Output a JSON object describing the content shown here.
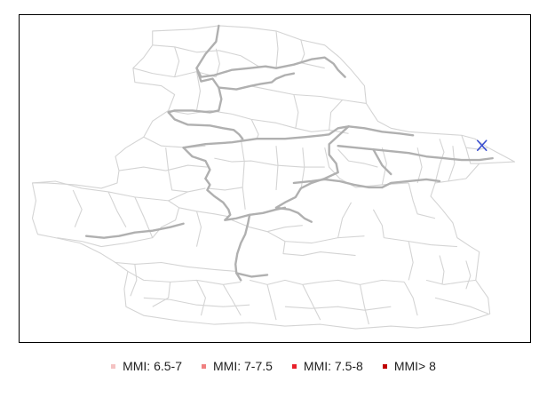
{
  "legend": {
    "items": [
      {
        "label": "MMI: 6.5-7",
        "color": "#f4c2c2"
      },
      {
        "label": "MMI: 7-7.5",
        "color": "#f08080"
      },
      {
        "label": "MMI: 7.5-8",
        "color": "#e8202a"
      },
      {
        "label": "MMI> 8",
        "color": "#c00000"
      }
    ]
  },
  "map": {
    "outline_color_primary": "#b4b4b4",
    "outline_color_secondary": "#d2d2d2",
    "epicenter_color": "#3a4fd0",
    "epicenter_icon": "x-mark"
  }
}
